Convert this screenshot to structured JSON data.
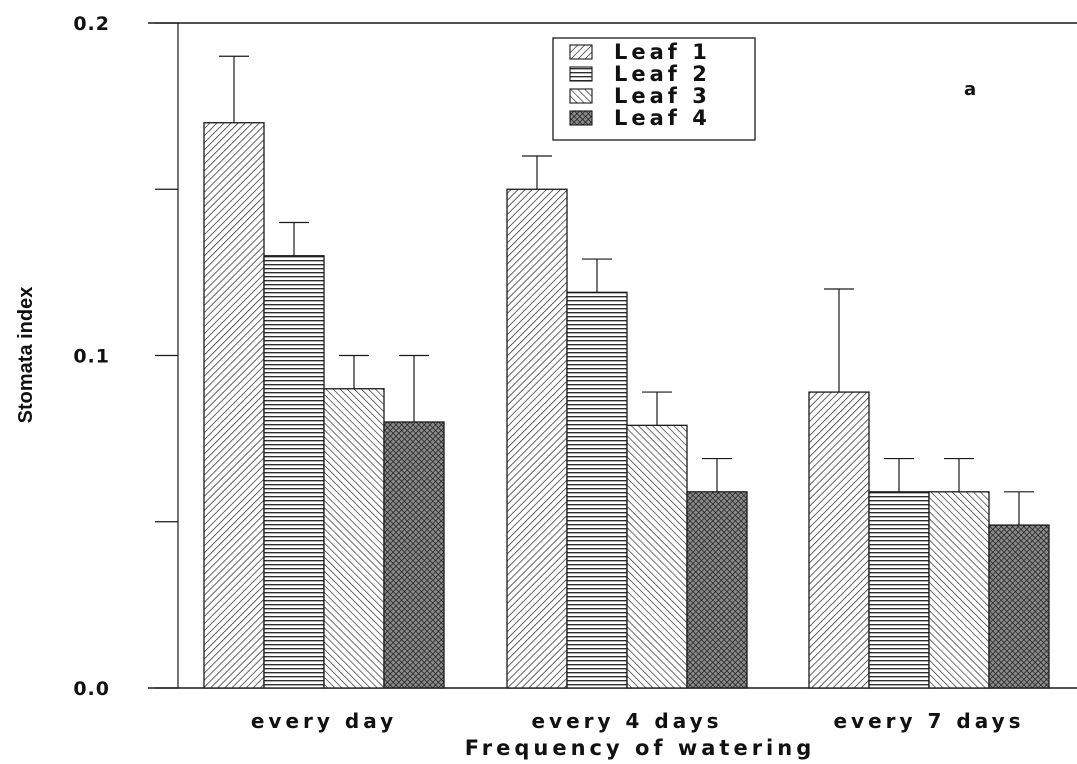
{
  "chart_data": {
    "type": "bar",
    "title": "",
    "panel_label": "a",
    "xlabel": "Frequency of watering",
    "ylabel": "Stomata index",
    "ylim": [
      0,
      0.2
    ],
    "yticks": [
      {
        "value": 0.0,
        "label": "0.0"
      },
      {
        "value": 0.05,
        "label": ""
      },
      {
        "value": 0.1,
        "label": "0.1"
      },
      {
        "value": 0.15,
        "label": ""
      },
      {
        "value": 0.2,
        "label": "0.2"
      }
    ],
    "categories": [
      "every day",
      "every 4 days",
      "every 7 days"
    ],
    "series": [
      {
        "name": "Leaf 1",
        "pattern": "diag-down-right",
        "values": [
          0.17,
          0.15,
          0.089
        ],
        "errors": [
          0.02,
          0.01,
          0.031
        ]
      },
      {
        "name": "Leaf 2",
        "pattern": "horizontal",
        "values": [
          0.13,
          0.119,
          0.059
        ],
        "errors": [
          0.01,
          0.01,
          0.01
        ]
      },
      {
        "name": "Leaf 3",
        "pattern": "diag-up-right",
        "values": [
          0.09,
          0.079,
          0.059
        ],
        "errors": [
          0.01,
          0.01,
          0.01
        ]
      },
      {
        "name": "Leaf 4",
        "pattern": "crosshatch",
        "values": [
          0.08,
          0.059,
          0.049
        ],
        "errors": [
          0.02,
          0.01,
          0.01
        ]
      }
    ],
    "legend_position": "top-center",
    "grid": false,
    "colors": {
      "ink": "#1a1a1a",
      "background": "#ffffff",
      "dense_fill": "#444444"
    }
  }
}
